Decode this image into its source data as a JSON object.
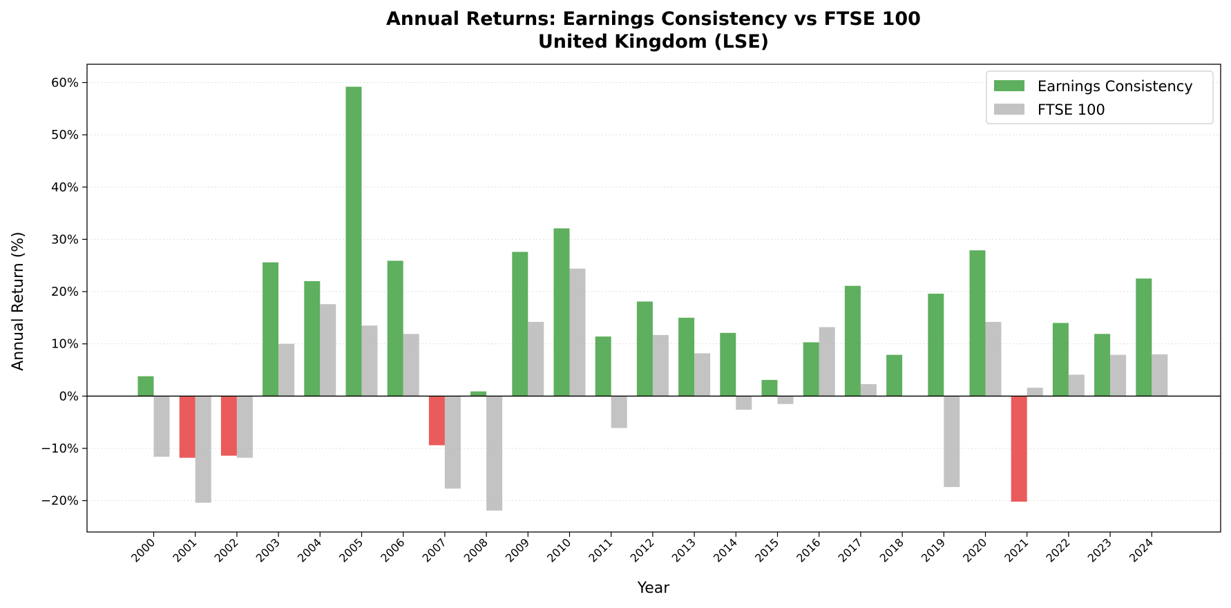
{
  "chart_data": {
    "type": "bar",
    "title": "Annual Returns: Earnings Consistency vs FTSE 100",
    "subtitle": "United Kingdom (LSE)",
    "xlabel": "Year",
    "ylabel": "Annual Return (%)",
    "ylim": [
      -26,
      63.5
    ],
    "yticks": [
      -20,
      -10,
      0,
      10,
      20,
      30,
      40,
      50,
      60
    ],
    "ytick_labels": [
      "−20%",
      "−10%",
      "0%",
      "10%",
      "20%",
      "30%",
      "40%",
      "50%",
      "60%"
    ],
    "grid": "horizontal dotted",
    "legend_position": "top-right",
    "categories": [
      "2000",
      "2001",
      "2002",
      "2003",
      "2004",
      "2005",
      "2006",
      "2007",
      "2008",
      "2009",
      "2010",
      "2011",
      "2012",
      "2013",
      "2014",
      "2015",
      "2016",
      "2017",
      "2018",
      "2019",
      "2020",
      "2021",
      "2022",
      "2023",
      "2024"
    ],
    "series": [
      {
        "name": "Earnings Consistency",
        "color": "#4ca64c",
        "negative_color": "#e8494a",
        "values": [
          3.8,
          -11.8,
          -11.4,
          25.6,
          22.0,
          59.2,
          25.9,
          -9.4,
          0.9,
          27.6,
          32.1,
          11.4,
          18.1,
          15.0,
          12.1,
          3.1,
          10.3,
          21.1,
          7.9,
          19.6,
          27.9,
          -20.2,
          14.0,
          11.9,
          22.5
        ]
      },
      {
        "name": "FTSE 100",
        "color": "#b8b8b8",
        "values": [
          -11.6,
          -20.4,
          -11.8,
          10.0,
          17.6,
          13.5,
          11.9,
          -17.7,
          -21.9,
          14.2,
          24.4,
          -6.1,
          11.7,
          8.2,
          -2.6,
          -1.5,
          13.2,
          2.3,
          0.0,
          -17.4,
          14.2,
          1.6,
          4.1,
          7.9,
          8.0
        ]
      }
    ]
  }
}
